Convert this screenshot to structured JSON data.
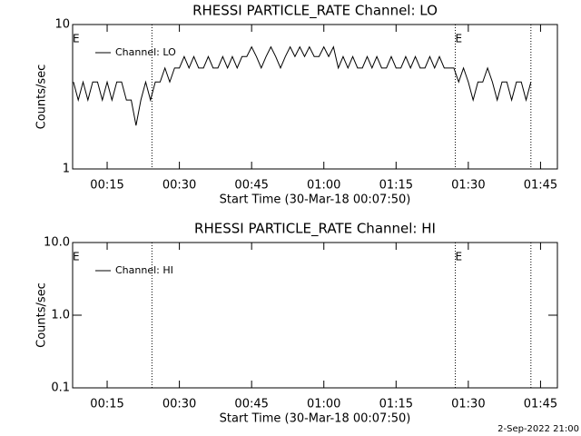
{
  "chart_data": [
    {
      "type": "line",
      "title": "RHESSI PARTICLE_RATE Channel: LO",
      "xlabel": "Start Time (30-Mar-18 00:07:50)",
      "ylabel": "Counts/sec",
      "log_y": true,
      "legend": "upper left",
      "xlim": [
        7.83,
        108.5
      ],
      "xticks": [
        {
          "value": 15,
          "label": "00:15"
        },
        {
          "value": 30,
          "label": "00:30"
        },
        {
          "value": 45,
          "label": "00:45"
        },
        {
          "value": 60,
          "label": "01:00"
        },
        {
          "value": 75,
          "label": "01:15"
        },
        {
          "value": 90,
          "label": "01:30"
        },
        {
          "value": 105,
          "label": "01:45"
        }
      ],
      "ylim": [
        1,
        10
      ],
      "yticks": [
        1,
        10
      ],
      "vlines": [
        24.3,
        87.3,
        103
      ],
      "annotations": [
        {
          "text": "E",
          "x": 7.83
        },
        {
          "text": "E",
          "x": 87.3
        }
      ],
      "x": [
        8,
        9,
        10,
        11,
        12,
        13,
        14,
        15,
        16,
        17,
        18,
        19,
        20,
        21,
        22,
        23,
        24,
        25,
        26,
        27,
        28,
        29,
        30,
        31,
        32,
        33,
        34,
        35,
        36,
        37,
        38,
        39,
        40,
        41,
        42,
        43,
        44,
        45,
        46,
        47,
        48,
        49,
        50,
        51,
        52,
        53,
        54,
        55,
        56,
        57,
        58,
        59,
        60,
        61,
        62,
        63,
        64,
        65,
        66,
        67,
        68,
        69,
        70,
        71,
        72,
        73,
        74,
        75,
        76,
        77,
        78,
        79,
        80,
        81,
        82,
        83,
        84,
        85,
        86,
        87,
        88,
        89,
        90,
        91,
        92,
        93,
        94,
        95,
        96,
        97,
        98,
        99,
        100,
        101,
        102,
        103
      ],
      "series": [
        {
          "name": "Channel: LO",
          "color": "#000000",
          "values": [
            4,
            3,
            4,
            3,
            4,
            4,
            3,
            4,
            3,
            4,
            4,
            3,
            3,
            2,
            3,
            4,
            3,
            4,
            4,
            5,
            4,
            5,
            5,
            6,
            5,
            6,
            5,
            5,
            6,
            5,
            5,
            6,
            5,
            6,
            5,
            6,
            6,
            7,
            6,
            5,
            6,
            7,
            6,
            5,
            6,
            7,
            6,
            7,
            6,
            7,
            6,
            6,
            7,
            6,
            7,
            5,
            6,
            5,
            6,
            5,
            5,
            6,
            5,
            6,
            5,
            5,
            6,
            5,
            5,
            6,
            5,
            6,
            5,
            5,
            6,
            5,
            6,
            5,
            5,
            5,
            4,
            5,
            4,
            3,
            4,
            4,
            5,
            4,
            3,
            4,
            4,
            3,
            4,
            4,
            3,
            4
          ]
        }
      ]
    },
    {
      "type": "line",
      "title": "RHESSI PARTICLE_RATE Channel: HI",
      "xlabel": "Start Time (30-Mar-18 00:07:50)",
      "ylabel": "Counts/sec",
      "log_y": true,
      "legend": "upper left",
      "xlim": [
        7.83,
        108.5
      ],
      "xticks": [
        {
          "value": 15,
          "label": "00:15"
        },
        {
          "value": 30,
          "label": "00:30"
        },
        {
          "value": 45,
          "label": "00:45"
        },
        {
          "value": 60,
          "label": "01:00"
        },
        {
          "value": 75,
          "label": "01:15"
        },
        {
          "value": 90,
          "label": "01:30"
        },
        {
          "value": 105,
          "label": "01:45"
        }
      ],
      "ylim": [
        0.1,
        10
      ],
      "yticks": [
        0.1,
        {
          "value": 1,
          "label": "1.0"
        },
        {
          "value": 10,
          "label": "10.0"
        }
      ],
      "vlines": [
        24.3,
        87.3,
        103
      ],
      "annotations": [
        {
          "text": "E",
          "x": 7.83
        },
        {
          "text": "E",
          "x": 87.3
        }
      ],
      "x": [],
      "series": [
        {
          "name": "Channel: HI",
          "color": "#000000",
          "values": []
        }
      ]
    }
  ],
  "footer": "2-Sep-2022 21:00"
}
